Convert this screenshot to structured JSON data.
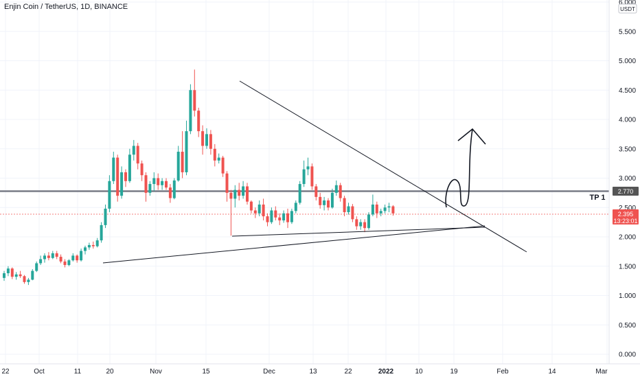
{
  "header": {
    "title": "Enjin Coin / TetherUS, 1D, BINANCE"
  },
  "axis": {
    "currency_label": "USDT"
  },
  "colors": {
    "up": "#26a69a",
    "down": "#ef5350",
    "grid": "#f0f3fa",
    "resistance": "#787b86",
    "drawing": "#131722",
    "price_badge": "#ef5350",
    "level_badge": "#555555"
  },
  "chart_data": {
    "type": "candlestick",
    "title": "Enjin Coin / TetherUS, 1D, BINANCE",
    "y_ticks": [
      "6.000",
      "5.500",
      "5.000",
      "4.500",
      "4.000",
      "3.500",
      "3.000",
      "2.500",
      "2.000",
      "1.500",
      "1.000",
      "0.500",
      "0.000"
    ],
    "x_ticks": [
      "22",
      "Oct",
      "11",
      "20",
      "Nov",
      "15",
      "Dec",
      "13",
      "22",
      "2022",
      "10",
      "19",
      "Feb",
      "14",
      "Mar"
    ],
    "ylim": [
      0,
      6
    ],
    "current_price": "2.395",
    "countdown": "13:23:01",
    "level_price": "2.770",
    "level_label": "TP 1",
    "candles": [
      {
        "o": 1.3,
        "h": 1.42,
        "l": 1.25,
        "c": 1.38
      },
      {
        "o": 1.38,
        "h": 1.5,
        "l": 1.33,
        "c": 1.46
      },
      {
        "o": 1.46,
        "h": 1.48,
        "l": 1.28,
        "c": 1.32
      },
      {
        "o": 1.32,
        "h": 1.4,
        "l": 1.27,
        "c": 1.36
      },
      {
        "o": 1.36,
        "h": 1.42,
        "l": 1.3,
        "c": 1.33
      },
      {
        "o": 1.33,
        "h": 1.35,
        "l": 1.2,
        "c": 1.23
      },
      {
        "o": 1.23,
        "h": 1.3,
        "l": 1.18,
        "c": 1.27
      },
      {
        "o": 1.27,
        "h": 1.45,
        "l": 1.26,
        "c": 1.42
      },
      {
        "o": 1.42,
        "h": 1.58,
        "l": 1.4,
        "c": 1.55
      },
      {
        "o": 1.55,
        "h": 1.68,
        "l": 1.52,
        "c": 1.62
      },
      {
        "o": 1.62,
        "h": 1.72,
        "l": 1.56,
        "c": 1.68
      },
      {
        "o": 1.68,
        "h": 1.74,
        "l": 1.6,
        "c": 1.64
      },
      {
        "o": 1.64,
        "h": 1.76,
        "l": 1.62,
        "c": 1.72
      },
      {
        "o": 1.72,
        "h": 1.76,
        "l": 1.62,
        "c": 1.66
      },
      {
        "o": 1.66,
        "h": 1.7,
        "l": 1.55,
        "c": 1.58
      },
      {
        "o": 1.58,
        "h": 1.62,
        "l": 1.48,
        "c": 1.52
      },
      {
        "o": 1.52,
        "h": 1.62,
        "l": 1.5,
        "c": 1.6
      },
      {
        "o": 1.6,
        "h": 1.72,
        "l": 1.58,
        "c": 1.68
      },
      {
        "o": 1.68,
        "h": 1.7,
        "l": 1.56,
        "c": 1.6
      },
      {
        "o": 1.6,
        "h": 1.8,
        "l": 1.58,
        "c": 1.76
      },
      {
        "o": 1.76,
        "h": 1.85,
        "l": 1.7,
        "c": 1.82
      },
      {
        "o": 1.82,
        "h": 1.9,
        "l": 1.78,
        "c": 1.86
      },
      {
        "o": 1.86,
        "h": 1.92,
        "l": 1.8,
        "c": 1.84
      },
      {
        "o": 1.84,
        "h": 1.98,
        "l": 1.82,
        "c": 1.94
      },
      {
        "o": 1.94,
        "h": 2.25,
        "l": 1.9,
        "c": 2.2
      },
      {
        "o": 2.2,
        "h": 2.55,
        "l": 2.15,
        "c": 2.48
      },
      {
        "o": 2.48,
        "h": 3.05,
        "l": 2.42,
        "c": 2.95
      },
      {
        "o": 2.95,
        "h": 3.45,
        "l": 2.9,
        "c": 3.35
      },
      {
        "o": 3.35,
        "h": 3.4,
        "l": 2.6,
        "c": 2.7
      },
      {
        "o": 2.7,
        "h": 3.2,
        "l": 2.65,
        "c": 3.1
      },
      {
        "o": 3.1,
        "h": 3.15,
        "l": 2.85,
        "c": 2.95
      },
      {
        "o": 2.95,
        "h": 3.5,
        "l": 2.92,
        "c": 3.4
      },
      {
        "o": 3.4,
        "h": 3.65,
        "l": 3.3,
        "c": 3.55
      },
      {
        "o": 3.55,
        "h": 3.6,
        "l": 3.15,
        "c": 3.25
      },
      {
        "o": 3.25,
        "h": 3.3,
        "l": 2.95,
        "c": 3.05
      },
      {
        "o": 3.05,
        "h": 3.1,
        "l": 2.6,
        "c": 2.75
      },
      {
        "o": 2.75,
        "h": 2.95,
        "l": 2.7,
        "c": 2.9
      },
      {
        "o": 2.9,
        "h": 3.1,
        "l": 2.78,
        "c": 3.0
      },
      {
        "o": 3.0,
        "h": 3.08,
        "l": 2.8,
        "c": 2.88
      },
      {
        "o": 2.88,
        "h": 3.0,
        "l": 2.8,
        "c": 2.95
      },
      {
        "o": 2.95,
        "h": 3.0,
        "l": 2.8,
        "c": 2.84
      },
      {
        "o": 2.84,
        "h": 2.9,
        "l": 2.58,
        "c": 2.66
      },
      {
        "o": 2.66,
        "h": 3.0,
        "l": 2.64,
        "c": 2.96
      },
      {
        "o": 2.96,
        "h": 3.55,
        "l": 2.94,
        "c": 3.45
      },
      {
        "o": 3.45,
        "h": 3.8,
        "l": 3.0,
        "c": 3.1
      },
      {
        "o": 3.1,
        "h": 3.98,
        "l": 3.05,
        "c": 3.8
      },
      {
        "o": 3.8,
        "h": 4.6,
        "l": 3.75,
        "c": 4.5
      },
      {
        "o": 4.5,
        "h": 4.85,
        "l": 4.05,
        "c": 4.15
      },
      {
        "o": 4.15,
        "h": 4.2,
        "l": 3.7,
        "c": 3.8
      },
      {
        "o": 3.8,
        "h": 3.9,
        "l": 3.4,
        "c": 3.55
      },
      {
        "o": 3.55,
        "h": 3.85,
        "l": 3.5,
        "c": 3.75
      },
      {
        "o": 3.75,
        "h": 3.82,
        "l": 3.4,
        "c": 3.5
      },
      {
        "o": 3.5,
        "h": 3.58,
        "l": 3.2,
        "c": 3.3
      },
      {
        "o": 3.3,
        "h": 3.42,
        "l": 3.25,
        "c": 3.35
      },
      {
        "o": 3.35,
        "h": 3.38,
        "l": 3.02,
        "c": 3.08
      },
      {
        "o": 3.08,
        "h": 3.12,
        "l": 2.6,
        "c": 2.75
      },
      {
        "o": 2.75,
        "h": 2.8,
        "l": 2.02,
        "c": 2.65
      },
      {
        "o": 2.65,
        "h": 2.88,
        "l": 2.5,
        "c": 2.8
      },
      {
        "o": 2.8,
        "h": 2.92,
        "l": 2.62,
        "c": 2.7
      },
      {
        "o": 2.7,
        "h": 2.95,
        "l": 2.65,
        "c": 2.86
      },
      {
        "o": 2.86,
        "h": 2.92,
        "l": 2.55,
        "c": 2.6
      },
      {
        "o": 2.6,
        "h": 2.62,
        "l": 2.4,
        "c": 2.45
      },
      {
        "o": 2.45,
        "h": 2.5,
        "l": 2.32,
        "c": 2.4
      },
      {
        "o": 2.4,
        "h": 2.62,
        "l": 2.35,
        "c": 2.55
      },
      {
        "o": 2.55,
        "h": 2.65,
        "l": 2.28,
        "c": 2.35
      },
      {
        "o": 2.35,
        "h": 2.4,
        "l": 2.18,
        "c": 2.25
      },
      {
        "o": 2.25,
        "h": 2.5,
        "l": 2.22,
        "c": 2.45
      },
      {
        "o": 2.45,
        "h": 2.52,
        "l": 2.28,
        "c": 2.33
      },
      {
        "o": 2.33,
        "h": 2.4,
        "l": 2.2,
        "c": 2.28
      },
      {
        "o": 2.28,
        "h": 2.45,
        "l": 2.24,
        "c": 2.4
      },
      {
        "o": 2.4,
        "h": 2.48,
        "l": 2.15,
        "c": 2.25
      },
      {
        "o": 2.25,
        "h": 2.48,
        "l": 2.22,
        "c": 2.44
      },
      {
        "o": 2.44,
        "h": 2.62,
        "l": 2.4,
        "c": 2.58
      },
      {
        "o": 2.58,
        "h": 2.95,
        "l": 2.55,
        "c": 2.9
      },
      {
        "o": 2.9,
        "h": 3.3,
        "l": 2.85,
        "c": 3.15
      },
      {
        "o": 3.15,
        "h": 3.35,
        "l": 3.05,
        "c": 3.2
      },
      {
        "o": 3.2,
        "h": 3.25,
        "l": 2.8,
        "c": 2.86
      },
      {
        "o": 2.86,
        "h": 2.9,
        "l": 2.62,
        "c": 2.68
      },
      {
        "o": 2.68,
        "h": 2.75,
        "l": 2.48,
        "c": 2.54
      },
      {
        "o": 2.54,
        "h": 2.68,
        "l": 2.45,
        "c": 2.62
      },
      {
        "o": 2.62,
        "h": 2.66,
        "l": 2.45,
        "c": 2.5
      },
      {
        "o": 2.5,
        "h": 2.82,
        "l": 2.48,
        "c": 2.75
      },
      {
        "o": 2.75,
        "h": 2.96,
        "l": 2.7,
        "c": 2.88
      },
      {
        "o": 2.88,
        "h": 2.92,
        "l": 2.6,
        "c": 2.66
      },
      {
        "o": 2.66,
        "h": 2.7,
        "l": 2.35,
        "c": 2.42
      },
      {
        "o": 2.42,
        "h": 2.58,
        "l": 2.38,
        "c": 2.52
      },
      {
        "o": 2.52,
        "h": 2.56,
        "l": 2.25,
        "c": 2.3
      },
      {
        "o": 2.3,
        "h": 2.35,
        "l": 2.12,
        "c": 2.18
      },
      {
        "o": 2.18,
        "h": 2.3,
        "l": 2.12,
        "c": 2.25
      },
      {
        "o": 2.25,
        "h": 2.3,
        "l": 2.08,
        "c": 2.15
      },
      {
        "o": 2.15,
        "h": 2.42,
        "l": 2.12,
        "c": 2.38
      },
      {
        "o": 2.38,
        "h": 2.72,
        "l": 2.35,
        "c": 2.55
      },
      {
        "o": 2.55,
        "h": 2.6,
        "l": 2.32,
        "c": 2.4
      },
      {
        "o": 2.4,
        "h": 2.48,
        "l": 2.35,
        "c": 2.44
      },
      {
        "o": 2.44,
        "h": 2.55,
        "l": 2.4,
        "c": 2.5
      },
      {
        "o": 2.5,
        "h": 2.58,
        "l": 2.42,
        "c": 2.52
      },
      {
        "o": 2.52,
        "h": 2.54,
        "l": 2.36,
        "c": 2.4
      }
    ]
  }
}
